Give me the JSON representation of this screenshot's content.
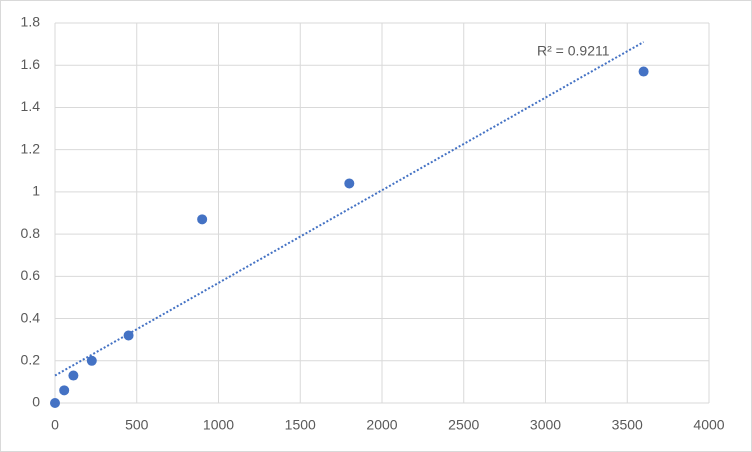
{
  "chart_data": {
    "type": "scatter",
    "x": [
      0,
      56.25,
      112.5,
      225,
      450,
      900,
      1800,
      3600
    ],
    "values": [
      0,
      0.06,
      0.13,
      0.2,
      0.32,
      0.87,
      1.04,
      1.57
    ],
    "color": "#4472c4",
    "xlim": [
      0,
      4000
    ],
    "xticks": [
      0,
      500,
      1000,
      1500,
      2000,
      2500,
      3000,
      3500,
      4000
    ],
    "ylim": [
      0,
      1.8
    ],
    "yticks": [
      0,
      0.2,
      0.4,
      0.6,
      0.8,
      1,
      1.2,
      1.4,
      1.6,
      1.8
    ],
    "grid": true,
    "trendline": {
      "x": [
        0,
        3600
      ],
      "values": [
        0.13,
        1.71
      ],
      "color": "#4472c4",
      "label": "R² = 0.9211"
    }
  }
}
